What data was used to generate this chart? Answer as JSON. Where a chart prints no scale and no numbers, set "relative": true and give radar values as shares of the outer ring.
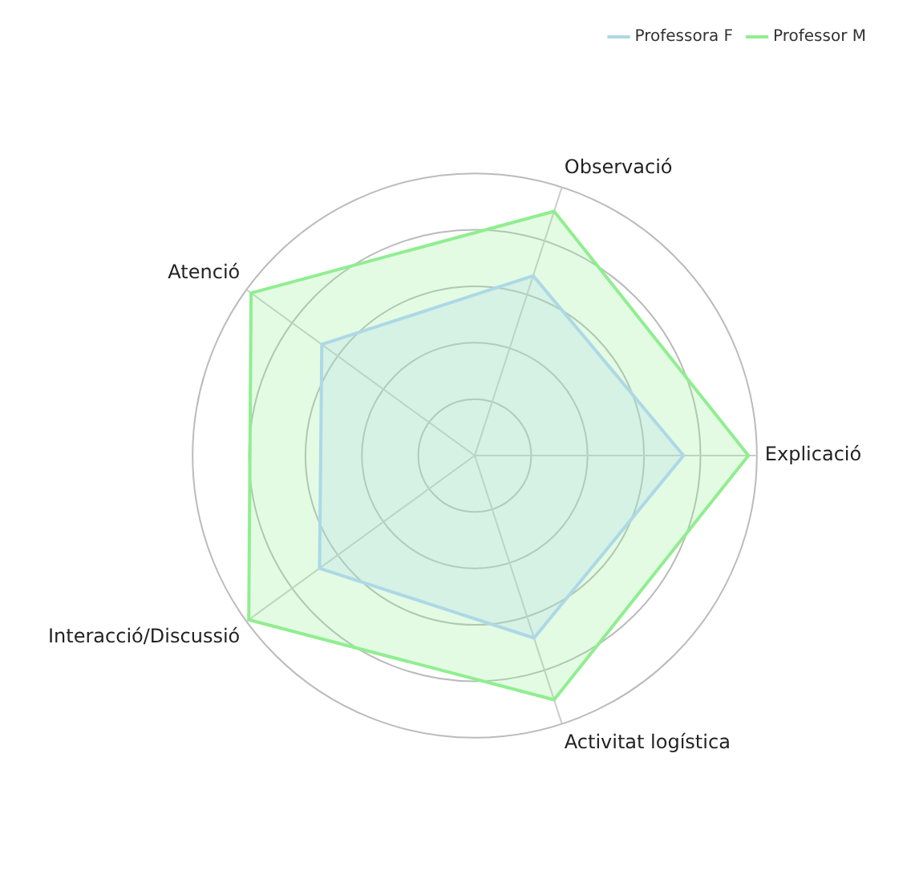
{
  "chart_data": {
    "type": "radar",
    "relative": true,
    "categories": [
      "Observació",
      "Explicació",
      "Activitat logística",
      "Interacció/Discussió",
      "Atenció"
    ],
    "series": [
      {
        "name": "Professora F",
        "color": "#add8e6",
        "values": [
          0.67,
          0.74,
          0.68,
          0.68,
          0.67
        ]
      },
      {
        "name": "Professor M",
        "color": "#90ee90",
        "values": [
          0.91,
          0.97,
          0.91,
          0.99,
          0.98
        ]
      }
    ],
    "grid": true,
    "legend": "top right",
    "marker": "none",
    "line_style": "solid"
  }
}
